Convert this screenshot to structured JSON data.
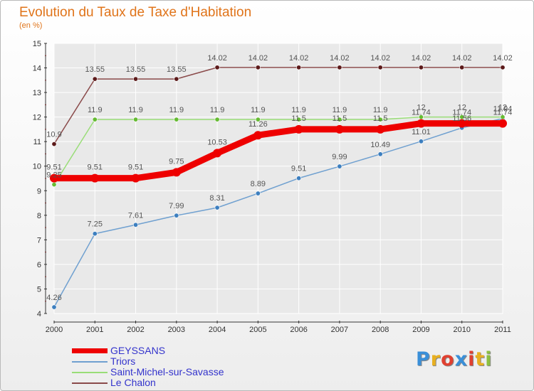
{
  "header": {
    "title": "Evolution du Taux de Taxe d'Habitation",
    "subtitle": "(en %)"
  },
  "logo": {
    "text": "Proxiti",
    "colors": [
      "#3a8fd8",
      "#e8b020",
      "#e04030",
      "#3a8fd8",
      "#e04030",
      "#e8b020",
      "#8cc040"
    ]
  },
  "chart_data": {
    "type": "line",
    "x": [
      2000,
      2001,
      2002,
      2003,
      2004,
      2005,
      2006,
      2007,
      2008,
      2009,
      2010,
      2011
    ],
    "ylim": [
      4,
      15
    ],
    "yticks": [
      4,
      5,
      6,
      7,
      8,
      9,
      10,
      11,
      12,
      13,
      14,
      15
    ],
    "grid": true,
    "legend_position": "bottom-left",
    "series": [
      {
        "name": "Triors",
        "color": "#6fa0d0",
        "point_color": "#3d7fbf",
        "values": [
          4.26,
          7.25,
          7.61,
          7.99,
          8.31,
          8.89,
          9.51,
          9.99,
          10.49,
          11.01,
          11.56,
          11.94
        ],
        "labels": [
          "4.26",
          "7.25",
          "7.61",
          "7.99",
          "8.31",
          "8.89",
          "9.51",
          "9.99",
          "10.49",
          "11.01",
          "11.56",
          "11.94"
        ]
      },
      {
        "name": "Saint-Michel-sur-Savasse",
        "color": "#99dd77",
        "point_color": "#66bb33",
        "values": [
          9.25,
          11.9,
          11.9,
          11.9,
          11.9,
          11.9,
          11.9,
          11.9,
          11.9,
          12,
          12,
          12
        ],
        "labels": [
          "9.25",
          "11.9",
          "11.9",
          "11.9",
          "11.9",
          "11.9",
          "11.9",
          "11.9",
          "11.9",
          "12",
          "12",
          "12"
        ]
      },
      {
        "name": "Le Chalon",
        "color": "#8a4a4a",
        "point_color": "#5c1a1a",
        "values": [
          10.9,
          13.55,
          13.55,
          13.55,
          14.02,
          14.02,
          14.02,
          14.02,
          14.02,
          14.02,
          14.02,
          14.02
        ],
        "labels": [
          "10.9",
          "13.55",
          "13.55",
          "13.55",
          "14.02",
          "14.02",
          "14.02",
          "14.02",
          "14.02",
          "14.02",
          "14.02",
          "14.02"
        ]
      },
      {
        "name": "GEYSSANS",
        "color": "#ee0000",
        "point_color": "#ee0000",
        "values": [
          9.51,
          9.51,
          9.51,
          9.75,
          10.53,
          11.26,
          11.5,
          11.5,
          11.5,
          11.74,
          11.74,
          11.74
        ],
        "labels": [
          "9.51",
          "9.51",
          "9.51",
          "9.75",
          "10.53",
          "11.26",
          "11.5",
          "11.5",
          "11.5",
          "11.74",
          "11.74",
          "11.74"
        ]
      }
    ],
    "legend": [
      "GEYSSANS",
      "Triors",
      "Saint-Michel-sur-Savasse",
      "Le Chalon"
    ]
  }
}
